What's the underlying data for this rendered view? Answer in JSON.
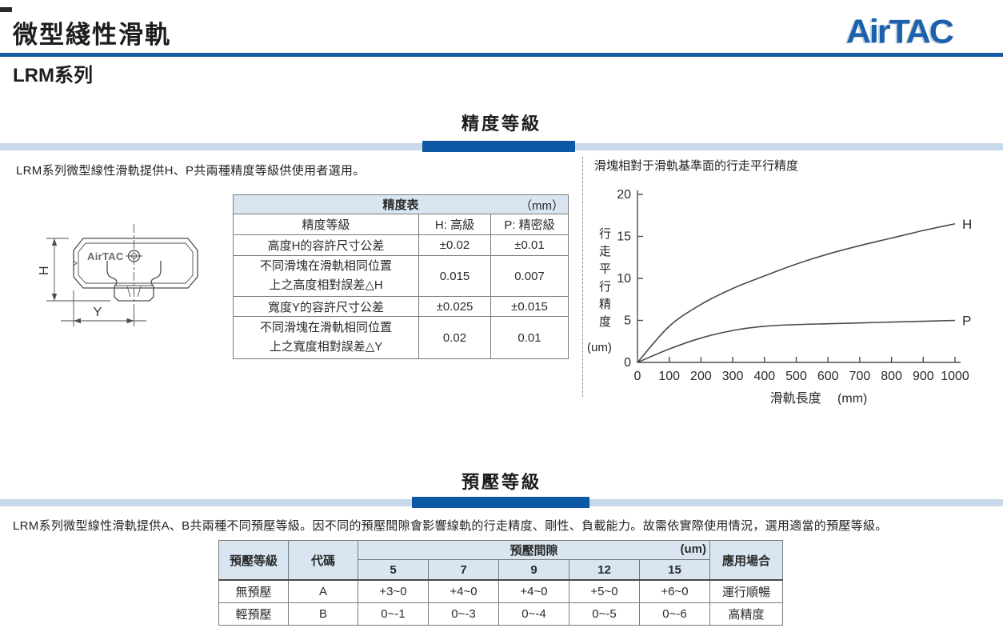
{
  "page": {
    "title": "微型綫性滑軌",
    "series": "LRM系列",
    "brand": "AirTAC"
  },
  "sections": {
    "accuracy": {
      "heading": "精度等級",
      "intro": "LRM系列微型線性滑軌提供H、P共兩種精度等級供使用者選用。",
      "chart_caption": "滑塊相對于滑軌基準面的行走平行精度",
      "diagram": {
        "brand": "AirTAC",
        "h_label": "H",
        "y_label": "Y"
      },
      "table": {
        "title": "精度表",
        "unit": "（mm）",
        "columns": [
          "精度等級",
          "H: 高級",
          "P: 精密級"
        ],
        "rows": [
          {
            "label": "高度H的容許尺寸公差",
            "h": "±0.02",
            "p": "±0.01"
          },
          {
            "label": "不同滑塊在滑軌相同位置\n上之高度相對誤差△H",
            "h": "0.015",
            "p": "0.007"
          },
          {
            "label": "寬度Y的容許尺寸公差",
            "h": "±0.025",
            "p": "±0.015"
          },
          {
            "label": "不同滑塊在滑軌相同位置\n上之寬度相對誤差△Y",
            "h": "0.02",
            "p": "0.01"
          }
        ]
      }
    },
    "preload": {
      "heading": "預壓等級",
      "intro": "LRM系列微型線性滑軌提供A、B共兩種不同預壓等級。因不同的預壓間隙會影響線軌的行走精度、剛性、負載能力。故需依實際使用情況，選用適當的預壓等級。",
      "table": {
        "grade_header": "預壓等級",
        "code_header": "代碼",
        "gap_header": "預壓間隙",
        "gap_unit": "(um)",
        "application_header": "應用場合",
        "gap_sizes": [
          "5",
          "7",
          "9",
          "12",
          "15"
        ],
        "rows": [
          {
            "grade": "無預壓",
            "code": "A",
            "values": [
              "+3~0",
              "+4~0",
              "+4~0",
              "+5~0",
              "+6~0"
            ],
            "application": "運行順暢"
          },
          {
            "grade": "輕預壓",
            "code": "B",
            "values": [
              "0~-1",
              "0~-3",
              "0~-4",
              "0~-5",
              "0~-6"
            ],
            "application": "高精度"
          }
        ]
      }
    }
  },
  "colors": {
    "brand_blue": "#1b61ad",
    "rule_blue": "#1459a5",
    "band_light": "#c7d9ea",
    "band_dark": "#0d59a6",
    "table_header_bg": "#d9e6f2"
  },
  "chart_data": {
    "type": "line",
    "title": "滑塊相對于滑軌基準面的行走平行精度",
    "xlabel": "滑軌長度",
    "x_unit": "(mm)",
    "ylabel": "行走平行精度",
    "y_unit": "(um)",
    "xlim": [
      0,
      1000
    ],
    "ylim": [
      0,
      20
    ],
    "x_ticks": [
      0,
      100,
      200,
      300,
      400,
      500,
      600,
      700,
      800,
      900,
      1000
    ],
    "y_ticks": [
      0,
      5,
      10,
      15,
      20
    ],
    "grid": false,
    "legend_position": "curve-end",
    "series": [
      {
        "name": "H",
        "x": [
          0,
          100,
          200,
          300,
          400,
          500,
          600,
          700,
          800,
          900,
          1000
        ],
        "y": [
          0,
          4.3,
          6.9,
          8.8,
          10.3,
          11.7,
          12.9,
          13.9,
          14.8,
          15.7,
          16.5
        ]
      },
      {
        "name": "P",
        "x": [
          0,
          100,
          200,
          300,
          400,
          500,
          600,
          700,
          800,
          900,
          1000
        ],
        "y": [
          0,
          1.6,
          2.9,
          3.8,
          4.3,
          4.5,
          4.6,
          4.7,
          4.8,
          4.9,
          5.0
        ]
      }
    ]
  }
}
